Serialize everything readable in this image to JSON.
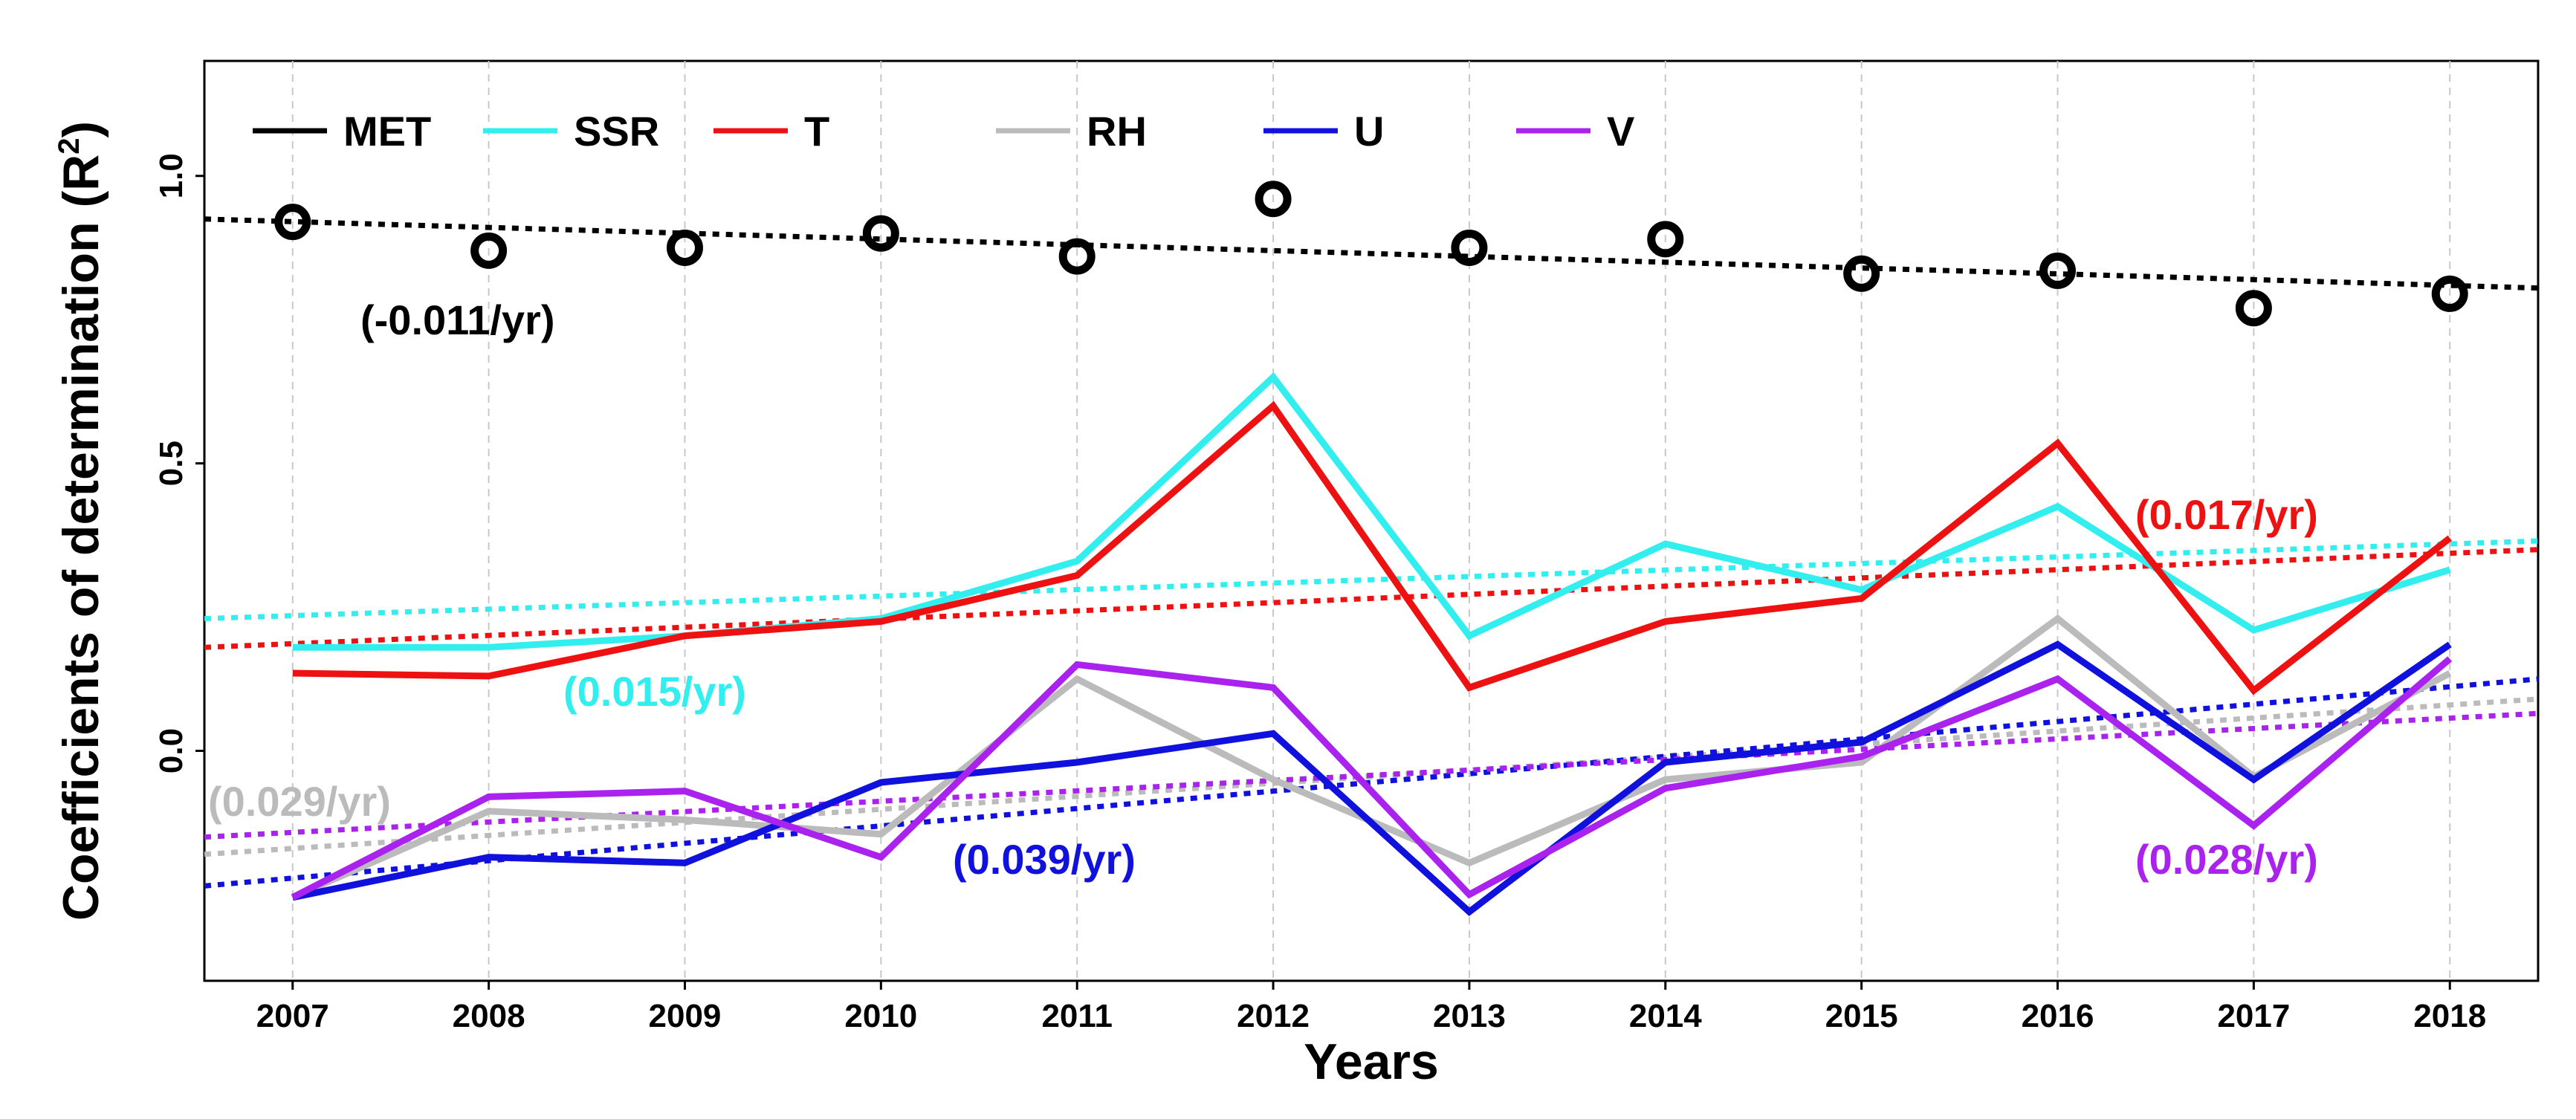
{
  "chart_data": {
    "type": "line",
    "xlabel": "Years",
    "ylabel": "Coefficients of determination (R",
    "ylabel_sup": "2",
    "ylabel_close": ")",
    "x": [
      2007,
      2008,
      2009,
      2010,
      2011,
      2012,
      2013,
      2014,
      2015,
      2016,
      2017,
      2018
    ],
    "x_tick_labels": [
      "2007",
      "2008",
      "2009",
      "2010",
      "2011",
      "2012",
      "2013",
      "2014",
      "2015",
      "2016",
      "2017",
      "2018"
    ],
    "xlim": [
      2006.55,
      2018.45
    ],
    "ylim": [
      -0.4,
      1.2
    ],
    "y_ticks": [
      0.0,
      0.5,
      1.0
    ],
    "y_tick_labels": [
      "0.0",
      "0.5",
      "1.0"
    ],
    "grid": "vertical dashed at each year",
    "series": [
      {
        "name": "MET",
        "color": "#000000",
        "style": "markers",
        "values": [
          0.92,
          0.87,
          0.875,
          0.9,
          0.86,
          0.96,
          0.875,
          0.89,
          0.83,
          0.835,
          0.77,
          0.795
        ],
        "trend": {
          "y_start": 0.925,
          "y_end": 0.805,
          "label": "(-0.011/yr)"
        }
      },
      {
        "name": "SSR",
        "color": "#33eeee",
        "style": "line",
        "values": [
          0.18,
          0.18,
          0.2,
          0.23,
          0.33,
          0.65,
          0.2,
          0.36,
          0.28,
          0.425,
          0.21,
          0.315
        ],
        "trend": {
          "y_start": 0.23,
          "y_end": 0.365,
          "label": "(0.015/yr)"
        }
      },
      {
        "name": "T",
        "color": "#ee1111",
        "style": "line",
        "values": [
          0.135,
          0.13,
          0.2,
          0.225,
          0.305,
          0.6,
          0.11,
          0.225,
          0.265,
          0.535,
          0.105,
          0.37
        ],
        "trend": {
          "y_start": 0.18,
          "y_end": 0.35,
          "label": "(0.017/yr)"
        }
      },
      {
        "name": "RH",
        "color": "#bbbbbb",
        "style": "line",
        "values": [
          -0.255,
          -0.105,
          -0.12,
          -0.145,
          0.125,
          -0.05,
          -0.195,
          -0.05,
          -0.02,
          0.23,
          -0.045,
          0.135
        ],
        "trend": {
          "y_start": -0.18,
          "y_end": 0.09,
          "label": "(0.029/yr)"
        }
      },
      {
        "name": "U",
        "color": "#1111dd",
        "style": "line",
        "values": [
          -0.255,
          -0.185,
          -0.195,
          -0.055,
          -0.02,
          0.03,
          -0.28,
          -0.02,
          0.015,
          0.185,
          -0.05,
          0.185
        ],
        "trend": {
          "y_start": -0.235,
          "y_end": 0.125,
          "label": "(0.039/yr)"
        }
      },
      {
        "name": "V",
        "color": "#aa22ee",
        "style": "line",
        "values": [
          -0.255,
          -0.08,
          -0.07,
          -0.185,
          0.15,
          0.11,
          -0.25,
          -0.065,
          -0.01,
          0.125,
          -0.13,
          0.16
        ],
        "trend": {
          "y_start": -0.15,
          "y_end": 0.065,
          "label": "(0.028/yr)"
        }
      }
    ],
    "legend": [
      "MET",
      "SSR",
      "T",
      "RH",
      "U",
      "V"
    ],
    "legend_position": "top-left"
  }
}
